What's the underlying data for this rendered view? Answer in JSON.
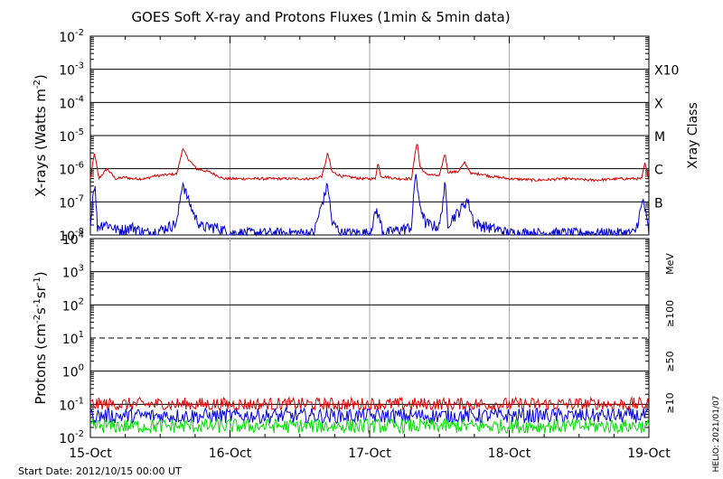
{
  "chart_data": [
    {
      "type": "line",
      "title": "GOES Soft X-ray and Protons Fluxes   (1min & 5min data)",
      "xlabel": "",
      "ylabel": "X-rays (Watts m^-2)",
      "yscale": "log",
      "ylim": [
        1e-08,
        0.01
      ],
      "x_ticks": [
        "15-Oct",
        "16-Oct",
        "17-Oct",
        "18-Oct",
        "19-Oct"
      ],
      "x_range": [
        "2012-10-15 00:00",
        "2012-10-19 00:00"
      ],
      "y_ticks": [
        {
          "base": "10",
          "exp": "-2"
        },
        {
          "base": "10",
          "exp": "-3"
        },
        {
          "base": "10",
          "exp": "-4"
        },
        {
          "base": "10",
          "exp": "-5"
        },
        {
          "base": "10",
          "exp": "-6"
        },
        {
          "base": "10",
          "exp": "-7"
        },
        {
          "base": "10",
          "exp": "-8"
        }
      ],
      "right_axis_label": "Xray Class",
      "class_labels": [
        "X10",
        "X",
        "M",
        "C",
        "B"
      ],
      "grid": true,
      "series": [
        {
          "color": "#d40000",
          "points": [
            [
              0.0,
              5e-07
            ],
            [
              0.03,
              3e-06
            ],
            [
              0.06,
              5e-07
            ],
            [
              0.12,
              1e-06
            ],
            [
              0.18,
              5e-07
            ],
            [
              0.25,
              5.5e-07
            ],
            [
              0.3,
              5e-07
            ],
            [
              0.4,
              5e-07
            ],
            [
              0.45,
              6e-07
            ],
            [
              0.62,
              7e-07
            ],
            [
              0.66,
              4e-06
            ],
            [
              0.7,
              2e-06
            ],
            [
              0.76,
              1e-06
            ],
            [
              0.85,
              8e-07
            ],
            [
              0.92,
              6e-07
            ],
            [
              0.95,
              5e-07
            ],
            [
              1.0,
              5e-07
            ],
            [
              1.2,
              5e-07
            ],
            [
              1.4,
              5e-07
            ],
            [
              1.6,
              5e-07
            ],
            [
              1.66,
              6e-07
            ],
            [
              1.7,
              3e-06
            ],
            [
              1.73,
              8e-07
            ],
            [
              1.8,
              6e-07
            ],
            [
              1.95,
              5e-07
            ],
            [
              2.04,
              5e-07
            ],
            [
              2.06,
              1.5e-06
            ],
            [
              2.08,
              6e-07
            ],
            [
              2.2,
              5e-07
            ],
            [
              2.3,
              5e-07
            ],
            [
              2.34,
              7e-06
            ],
            [
              2.36,
              1.2e-06
            ],
            [
              2.4,
              7e-07
            ],
            [
              2.5,
              6e-07
            ],
            [
              2.54,
              3e-06
            ],
            [
              2.56,
              8e-07
            ],
            [
              2.63,
              8e-07
            ],
            [
              2.68,
              1.5e-06
            ],
            [
              2.73,
              7e-07
            ],
            [
              2.8,
              7e-07
            ],
            [
              2.86,
              6e-07
            ],
            [
              3.0,
              5e-07
            ],
            [
              3.2,
              4.5e-07
            ],
            [
              3.4,
              5e-07
            ],
            [
              3.6,
              4.5e-07
            ],
            [
              3.8,
              5e-07
            ],
            [
              3.95,
              5e-07
            ],
            [
              3.97,
              1.5e-06
            ],
            [
              4.0,
              5e-07
            ]
          ]
        },
        {
          "color": "#0000cc",
          "points": [
            [
              0.0,
              1.5e-08
            ],
            [
              0.025,
              3e-07
            ],
            [
              0.035,
              2e-07
            ],
            [
              0.05,
              1.5e-08
            ],
            [
              0.1,
              2e-08
            ],
            [
              0.2,
              1.2e-08
            ],
            [
              0.3,
              1.5e-08
            ],
            [
              0.4,
              1e-08
            ],
            [
              0.5,
              1.2e-08
            ],
            [
              0.62,
              2e-08
            ],
            [
              0.66,
              3.5e-07
            ],
            [
              0.7,
              1e-07
            ],
            [
              0.75,
              3e-08
            ],
            [
              0.8,
              1.5e-08
            ],
            [
              0.9,
              1.5e-08
            ],
            [
              1.0,
              1e-08
            ],
            [
              1.2,
              1e-08
            ],
            [
              1.4,
              1e-08
            ],
            [
              1.6,
              1e-08
            ],
            [
              1.7,
              3e-07
            ],
            [
              1.73,
              2e-08
            ],
            [
              1.8,
              1e-08
            ],
            [
              2.0,
              1e-08
            ],
            [
              2.05,
              5e-08
            ],
            [
              2.1,
              1e-08
            ],
            [
              2.3,
              1.5e-08
            ],
            [
              2.33,
              8e-07
            ],
            [
              2.35,
              1e-07
            ],
            [
              2.4,
              2e-08
            ],
            [
              2.5,
              1.5e-08
            ],
            [
              2.54,
              3e-07
            ],
            [
              2.56,
              2e-08
            ],
            [
              2.65,
              5e-08
            ],
            [
              2.7,
              1e-07
            ],
            [
              2.75,
              2e-08
            ],
            [
              2.85,
              1.5e-08
            ],
            [
              3.0,
              1e-08
            ],
            [
              3.5,
              1e-08
            ],
            [
              3.9,
              1e-08
            ],
            [
              3.96,
              1e-07
            ],
            [
              4.0,
              1e-08
            ]
          ]
        }
      ]
    },
    {
      "type": "line",
      "title": "",
      "xlabel": "",
      "ylabel": "Protons (cm^-2 s^-1 sr^-1)",
      "yscale": "log",
      "ylim": [
        0.01,
        10000
      ],
      "x_ticks": [
        "15-Oct",
        "16-Oct",
        "17-Oct",
        "18-Oct",
        "19-Oct"
      ],
      "x_range": [
        "2012-10-15 00:00",
        "2012-10-19 00:00"
      ],
      "y_ticks": [
        {
          "base": "10",
          "exp": "4"
        },
        {
          "base": "10",
          "exp": "3"
        },
        {
          "base": "10",
          "exp": "2"
        },
        {
          "base": "10",
          "exp": "1"
        },
        {
          "base": "10",
          "exp": "0"
        },
        {
          "base": "10",
          "exp": "-1"
        },
        {
          "base": "10",
          "exp": "-2"
        }
      ],
      "unit_label": "MeV",
      "threshold_line": 10,
      "grid": true,
      "series": [
        {
          "name": "≥10",
          "color": "#e00000",
          "typical": 0.1,
          "range": [
            0.07,
            0.2
          ]
        },
        {
          "name": "≥50",
          "color": "#0000dd",
          "typical": 0.045,
          "range": [
            0.025,
            0.08
          ]
        },
        {
          "name": "≥100",
          "color": "#00dd00",
          "typical": 0.022,
          "range": [
            0.013,
            0.04
          ]
        }
      ]
    }
  ],
  "footer": {
    "start_date": "Start Date: 2012/10/15 00:00 UT",
    "credit": "HELIO: 2021/01/07"
  }
}
